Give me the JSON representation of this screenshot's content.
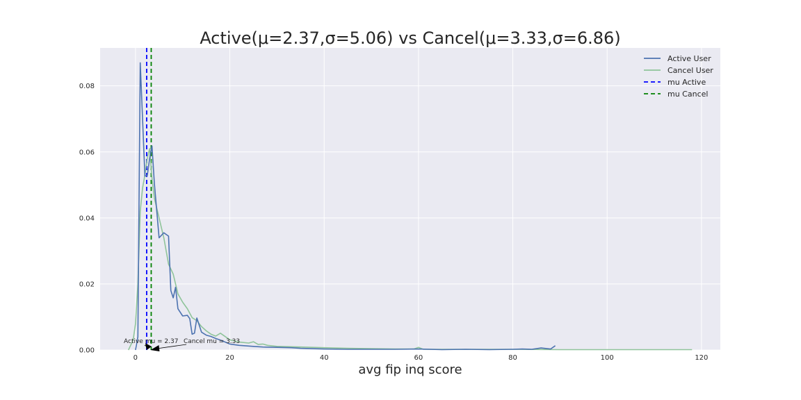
{
  "chart_data": {
    "type": "line",
    "title": "Active(μ=2.37,σ=5.06) vs Cancel(μ=3.33,σ=6.86)",
    "xlabel": "avg fip inq score",
    "ylabel": "",
    "xlim": [
      -7.5,
      124
    ],
    "ylim": [
      0,
      0.0915
    ],
    "xticks": [
      0,
      20,
      40,
      60,
      80,
      100,
      120
    ],
    "yticks": [
      0.0,
      0.02,
      0.04,
      0.06,
      0.08
    ],
    "ytick_labels": [
      "0.00",
      "0.02",
      "0.04",
      "0.06",
      "0.08"
    ],
    "grid": true,
    "legend": "top-right",
    "series": [
      {
        "name": "Active User",
        "color": "#4c72b0",
        "x": [
          0,
          0.5,
          1,
          2,
          2.5,
          3,
          3.5,
          4,
          5,
          6,
          7,
          7.5,
          8,
          8.5,
          9,
          10,
          11,
          11.5,
          12,
          12.5,
          13,
          14,
          15,
          16,
          17,
          18,
          20,
          22,
          25,
          27,
          30,
          33,
          35,
          40,
          45,
          50,
          55,
          60,
          65,
          70,
          75,
          80,
          82,
          84,
          86,
          88,
          89
        ],
        "y": [
          0,
          0.004,
          0.087,
          0.0527,
          0.0528,
          0.058,
          0.0618,
          0.0505,
          0.034,
          0.0355,
          0.0345,
          0.018,
          0.0158,
          0.019,
          0.0125,
          0.0103,
          0.0105,
          0.0095,
          0.0048,
          0.0051,
          0.0097,
          0.0054,
          0.0045,
          0.0041,
          0.0035,
          0.003,
          0.0018,
          0.0014,
          0.0011,
          0.0009,
          0.0008,
          0.0007,
          0.0005,
          0.0003,
          0.0002,
          0.0002,
          0.0002,
          0.0003,
          0.0001,
          0.0002,
          0.0001,
          0.0002,
          0.0003,
          0.0002,
          0.0006,
          0.0003,
          0.0013
        ]
      },
      {
        "name": "Cancel User",
        "color": "#8fc49a",
        "x": [
          -1.5,
          -0.5,
          0,
          0.5,
          1,
          1.5,
          2,
          2.5,
          3,
          3.5,
          4,
          5,
          6,
          7,
          8,
          9,
          10,
          11,
          12,
          13,
          14,
          15,
          16,
          17,
          18,
          20,
          22,
          24,
          25,
          26,
          27,
          28,
          30,
          35,
          40,
          45,
          50,
          55,
          59,
          60,
          61,
          65,
          70,
          80,
          90,
          100,
          110,
          118
        ],
        "y": [
          0,
          0.003,
          0.008,
          0.02,
          0.042,
          0.049,
          0.053,
          0.058,
          0.061,
          0.052,
          0.046,
          0.04,
          0.034,
          0.026,
          0.023,
          0.017,
          0.0145,
          0.0125,
          0.0098,
          0.0089,
          0.0071,
          0.0058,
          0.0048,
          0.0042,
          0.0051,
          0.0031,
          0.0024,
          0.0021,
          0.0025,
          0.0017,
          0.0018,
          0.0014,
          0.0011,
          0.0009,
          0.0007,
          0.0005,
          0.0004,
          0.0003,
          0.0003,
          0.0008,
          0.0002,
          0.0002,
          0.0002,
          0.0002,
          0.0001,
          0.0001,
          0.0001,
          0.0001
        ]
      }
    ],
    "vlines": [
      {
        "name": "mu Active",
        "x": 2.37,
        "color": "#0000ff"
      },
      {
        "name": "mu Cancel",
        "x": 3.33,
        "color": "#008000"
      }
    ],
    "annotations": [
      {
        "text": "Active mu = 2.37",
        "x": 2.37,
        "y": 0
      },
      {
        "text": "Cancel mu = 3.33",
        "x": 3.33,
        "y": 0
      }
    ]
  }
}
